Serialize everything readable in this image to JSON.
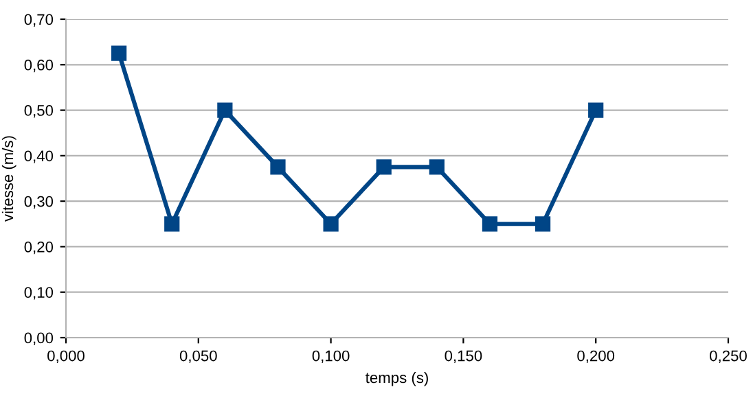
{
  "chart_data": {
    "type": "line",
    "xlabel": "temps (s)",
    "ylabel": "vitesse (m/s)",
    "x": [
      0.02,
      0.04,
      0.06,
      0.08,
      0.1,
      0.12,
      0.14,
      0.16,
      0.18,
      0.2
    ],
    "series": [
      {
        "color": "#004586",
        "values": [
          0.625,
          0.25,
          0.5,
          0.375,
          0.25,
          0.375,
          0.375,
          0.25,
          0.25,
          0.5
        ]
      }
    ],
    "xlim": [
      0,
      0.25
    ],
    "ylim": [
      0,
      0.7
    ],
    "xticks": [
      {
        "value": 0,
        "label": "0,000"
      },
      {
        "value": 0.05,
        "label": "0,050"
      },
      {
        "value": 0.1,
        "label": "0,100"
      },
      {
        "value": 0.15,
        "label": "0,150"
      },
      {
        "value": 0.2,
        "label": "0,200"
      },
      {
        "value": 0.25,
        "label": "0,250"
      }
    ],
    "yticks": [
      {
        "value": 0,
        "label": "0,00"
      },
      {
        "value": 0.1,
        "label": "0,10"
      },
      {
        "value": 0.2,
        "label": "0,20"
      },
      {
        "value": 0.3,
        "label": "0,30"
      },
      {
        "value": 0.4,
        "label": "0,40"
      },
      {
        "value": 0.5,
        "label": "0,50"
      },
      {
        "value": 0.6,
        "label": "0,60"
      },
      {
        "value": 0.7,
        "label": "0,70"
      }
    ],
    "grid": "y",
    "marker": "square",
    "line_style": "solid",
    "legend": false
  }
}
